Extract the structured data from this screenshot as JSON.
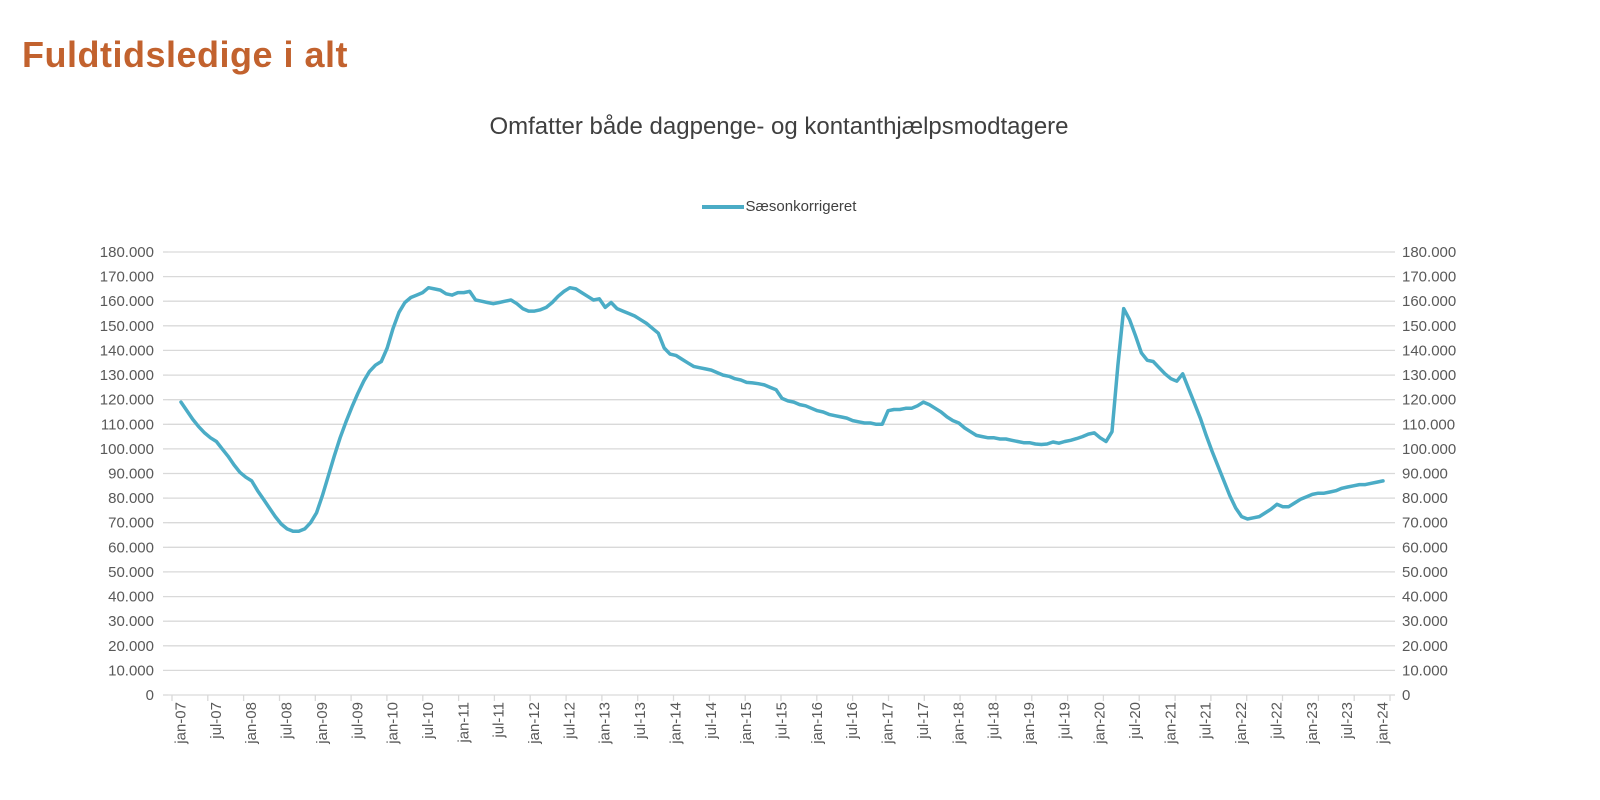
{
  "header": {
    "title": "Fuldtidsledige i alt",
    "title_color": "#C2622E"
  },
  "chart": {
    "title": "Omfatter både dagpenge- og kontanthjælpsmodtagere",
    "legend": {
      "label": "Sæsonkorrigeret"
    }
  },
  "colors": {
    "series_line": "#4BACC6",
    "gridline": "#D9D9D9",
    "axis_label": "#595959",
    "chart_title_text": "#3F3F3F",
    "legend_text": "#404040"
  },
  "chart_data": {
    "type": "line",
    "title": "Omfatter både dagpenge- og kontanthjælpsmodtagere",
    "x_start": "jan-07",
    "x_end": "jan-24",
    "x_interval": "monthly",
    "x_tick_labels": [
      "jan-07",
      "jul-07",
      "jan-08",
      "jul-08",
      "jan-09",
      "jul-09",
      "jan-10",
      "jul-10",
      "jan-11",
      "jul-11",
      "jan-12",
      "jul-12",
      "jan-13",
      "jul-13",
      "jan-14",
      "jul-14",
      "jan-15",
      "jul-15",
      "jan-16",
      "jul-16",
      "jan-17",
      "jul-17",
      "jan-18",
      "jul-18",
      "jan-19",
      "jul-19",
      "jan-20",
      "jul-20",
      "jan-21",
      "jul-21",
      "jan-22",
      "jul-22",
      "jan-23",
      "jul-23",
      "jan-24"
    ],
    "ylim": [
      0,
      180000
    ],
    "y_tick_step": 10000,
    "y_axis_sides": [
      "left",
      "right"
    ],
    "y_number_format": "dot-thousands (da-DK)",
    "grid": true,
    "legend_position": "top-center",
    "series": [
      {
        "name": "Sæsonkorrigeret",
        "color": "#4BACC6",
        "values": [
          119000,
          115500,
          112000,
          109000,
          106500,
          104500,
          103000,
          100000,
          97000,
          93500,
          90500,
          88500,
          87000,
          83000,
          79500,
          76000,
          72500,
          69500,
          67500,
          66500,
          66500,
          67500,
          70000,
          74000,
          81000,
          89000,
          97000,
          104500,
          111000,
          117000,
          122500,
          127500,
          131500,
          134000,
          135500,
          141000,
          149000,
          155500,
          159500,
          161500,
          162500,
          163500,
          165500,
          165000,
          164500,
          163000,
          162500,
          163500,
          163500,
          164000,
          160500,
          160000,
          159500,
          159000,
          159500,
          160000,
          160500,
          159000,
          157000,
          156000,
          156000,
          156500,
          157500,
          159500,
          162000,
          164000,
          165500,
          165000,
          163500,
          162000,
          160500,
          161000,
          157500,
          159500,
          157000,
          156000,
          155000,
          154000,
          152500,
          151000,
          149000,
          147000,
          141000,
          138500,
          138000,
          136500,
          135000,
          133500,
          133000,
          132500,
          132000,
          131000,
          130000,
          129500,
          128500,
          128000,
          127000,
          126800,
          126500,
          126000,
          125000,
          124000,
          120500,
          119500,
          119000,
          118000,
          117500,
          116500,
          115500,
          115000,
          114000,
          113500,
          113000,
          112500,
          111500,
          111000,
          110500,
          110500,
          110000,
          110000,
          115500,
          116000,
          116000,
          116500,
          116500,
          117500,
          119000,
          118000,
          116500,
          115000,
          113000,
          111500,
          110500,
          108500,
          107000,
          105500,
          105000,
          104500,
          104500,
          104000,
          104000,
          103500,
          103000,
          102500,
          102500,
          102000,
          101800,
          102000,
          102800,
          102300,
          103000,
          103500,
          104200,
          105000,
          106000,
          106500,
          104500,
          103000,
          107000,
          134000,
          157000,
          152500,
          146000,
          139000,
          136000,
          135500,
          133000,
          130500,
          128500,
          127500,
          130500,
          124500,
          118500,
          112500,
          105500,
          99000,
          93000,
          87000,
          81000,
          76000,
          72500,
          71500,
          72000,
          72500,
          74000,
          75500,
          77500,
          76500,
          76500,
          78000,
          79500,
          80500,
          81500,
          82000,
          82000,
          82500,
          83000,
          84000,
          84500,
          85000,
          85500,
          85500,
          86000,
          86500,
          87000
        ]
      }
    ]
  }
}
